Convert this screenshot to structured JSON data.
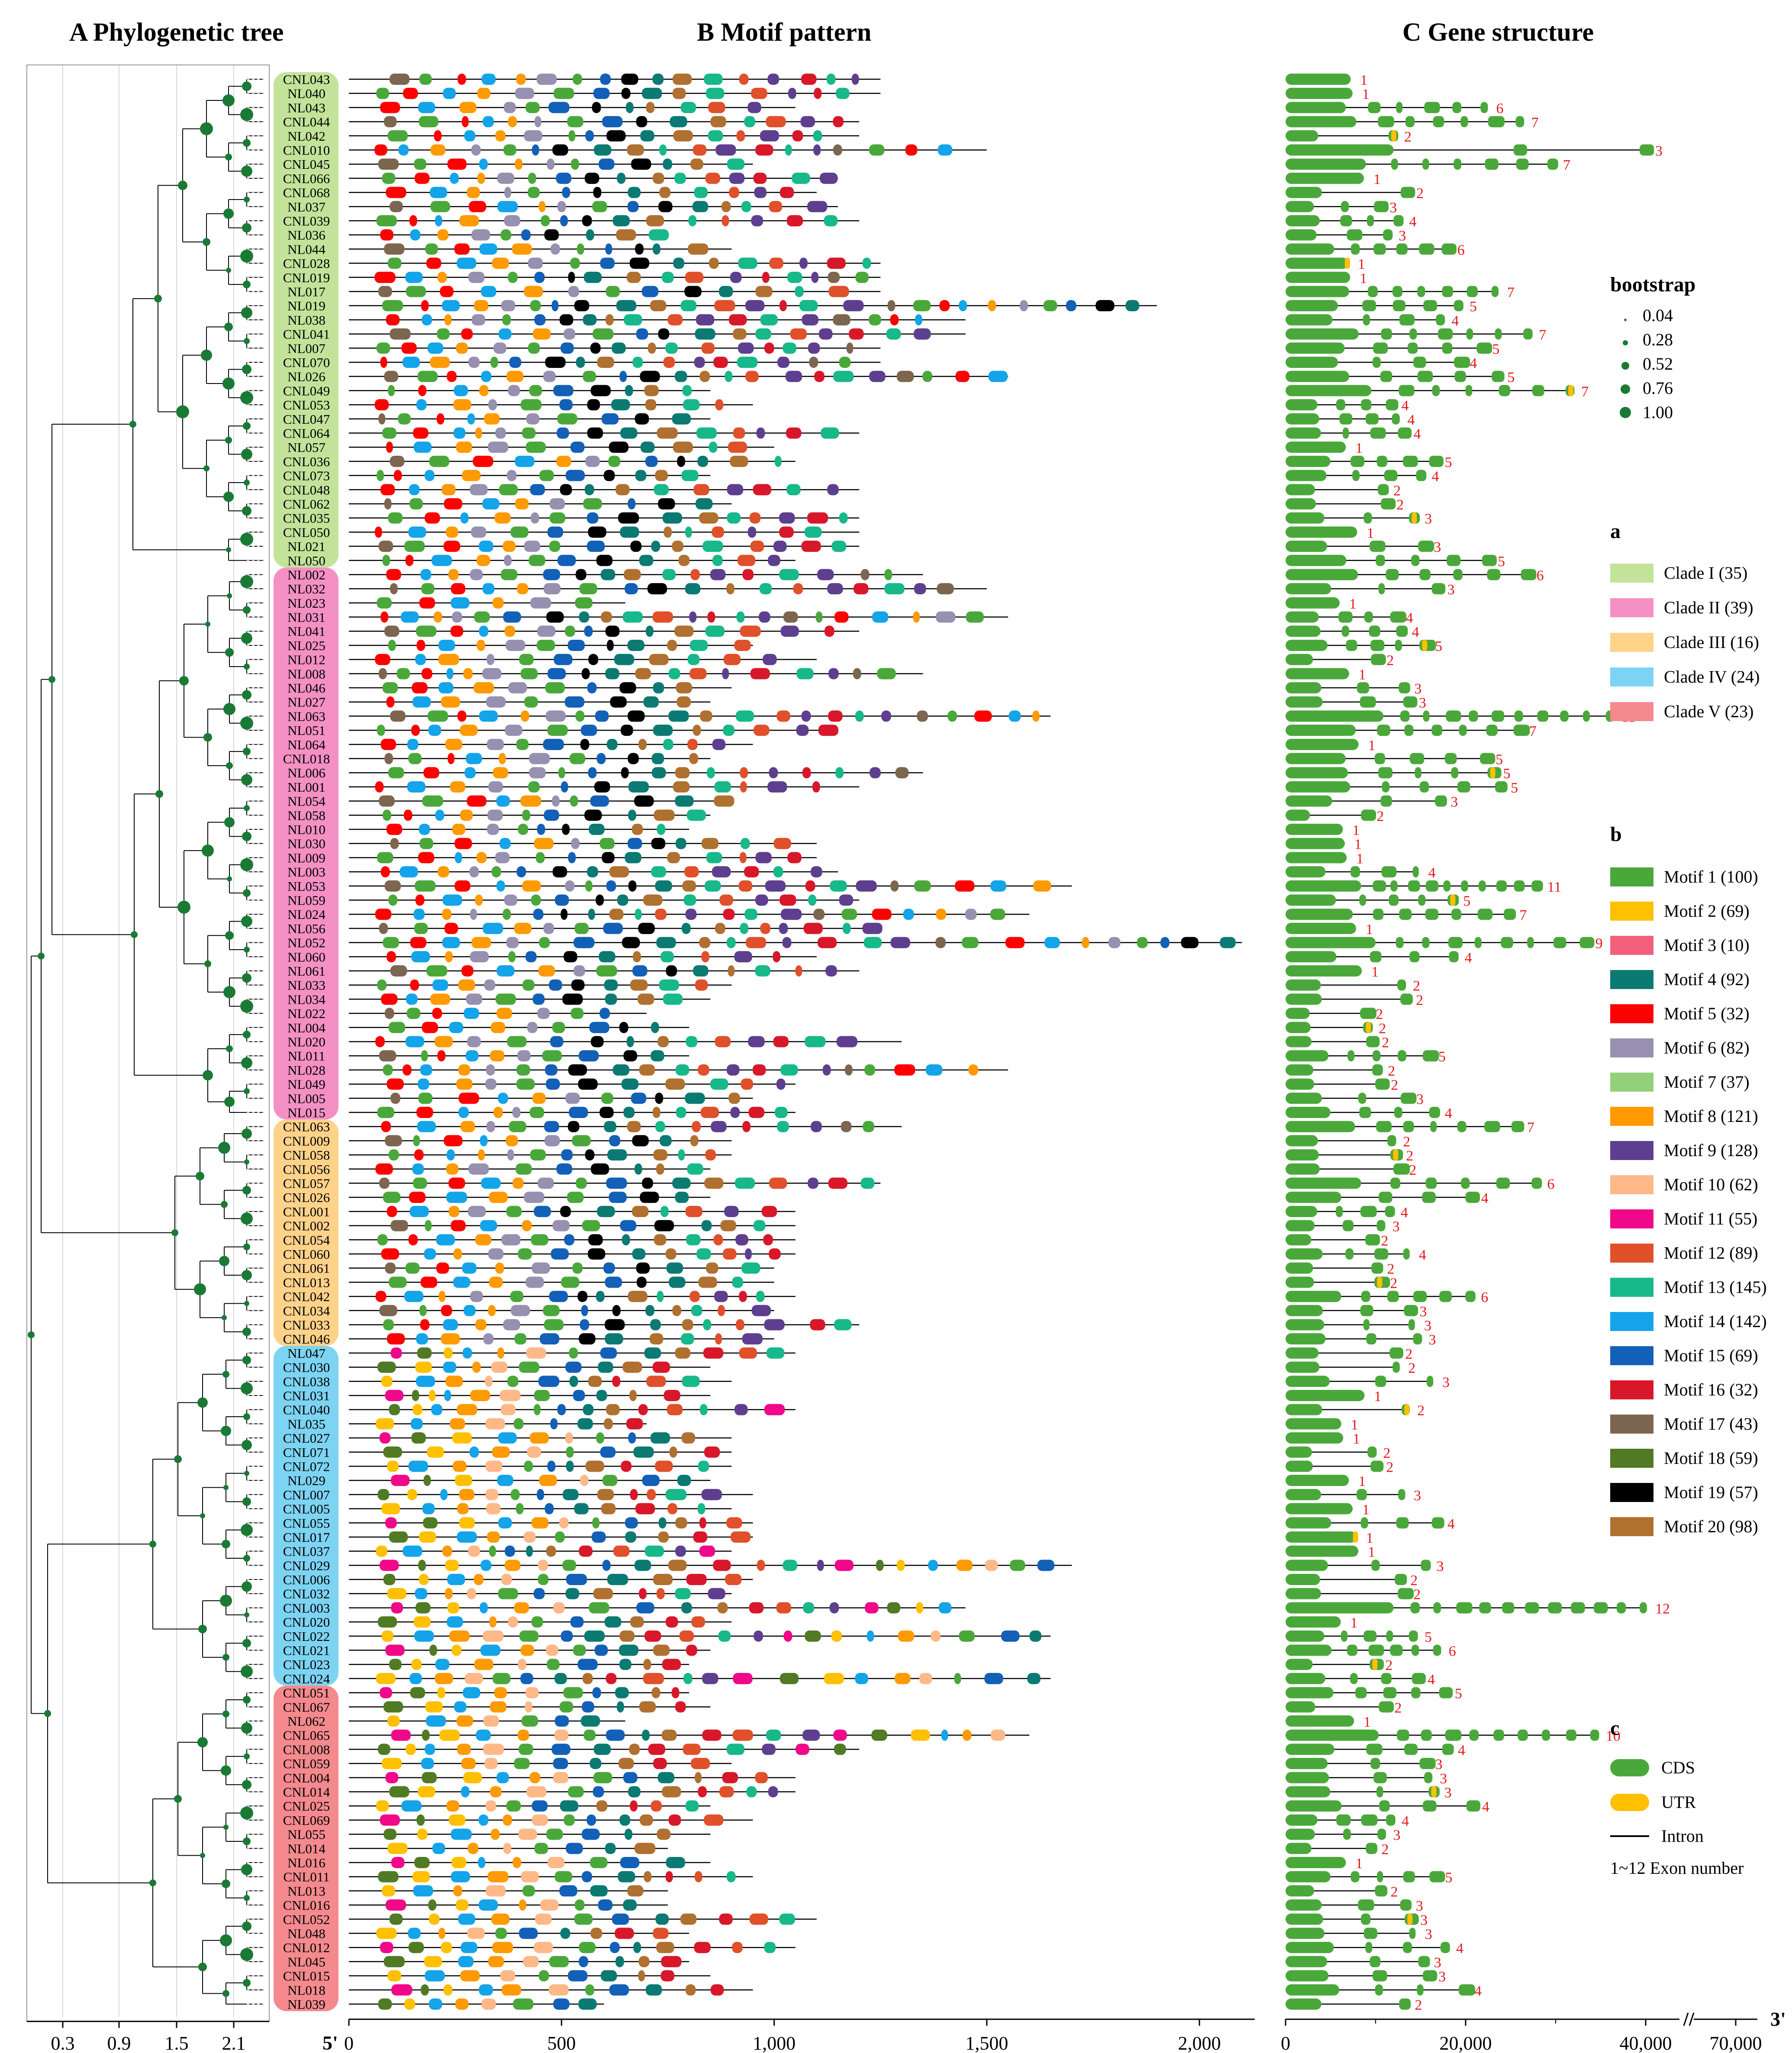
{
  "panels": {
    "a_title": "A  Phylogenetic tree",
    "b_title": "B  Motif pattern",
    "c_title": "C  Gene structure"
  },
  "tree_axis": {
    "ticks": [
      "0.3",
      "0.9",
      "1.5",
      "2.1"
    ]
  },
  "motif_axis": {
    "ticks": [
      "0",
      "500",
      "1,000",
      "1,500",
      "2,000"
    ],
    "start_label": "5'",
    "end_label": "3'"
  },
  "gene_axis": {
    "ticks": [
      "0",
      "20,000",
      "40,000",
      "70,000"
    ]
  },
  "bootstrap_legend": {
    "title": "bootstrap",
    "values": [
      "0.04",
      "0.28",
      "0.52",
      "0.76",
      "1.00"
    ]
  },
  "clade_legend": {
    "title": "a",
    "items": [
      {
        "label": "Clade I (35)",
        "color": "#c3e39a"
      },
      {
        "label": "Clade II (39)",
        "color": "#f490c4"
      },
      {
        "label": "Clade III (16)",
        "color": "#ffd28a"
      },
      {
        "label": "Clade IV (24)",
        "color": "#7dd3f2"
      },
      {
        "label": "Clade V (23)",
        "color": "#f48a8e"
      }
    ]
  },
  "motif_legend": {
    "title": "b",
    "items": [
      {
        "label": "Motif 1 (100)",
        "color": "#4aa83a"
      },
      {
        "label": "Motif 2 (69)",
        "color": "#ffc000"
      },
      {
        "label": "Motif 3 (10)",
        "color": "#f25f7a"
      },
      {
        "label": "Motif 4 (92)",
        "color": "#0b7a73"
      },
      {
        "label": "Motif 5 (32)",
        "color": "#ff0000"
      },
      {
        "label": "Motif 6 (82)",
        "color": "#9890b0"
      },
      {
        "label": "Motif 7 (37)",
        "color": "#93d07a"
      },
      {
        "label": "Motif 8 (121)",
        "color": "#ff9a00"
      },
      {
        "label": "Motif 9 (128)",
        "color": "#5e3f8f"
      },
      {
        "label": "Motif 10 (62)",
        "color": "#ffb888"
      },
      {
        "label": "Motif 11 (55)",
        "color": "#f0078a"
      },
      {
        "label": "Motif 12 (89)",
        "color": "#e0502a"
      },
      {
        "label": "Motif 13 (145)",
        "color": "#17b88a"
      },
      {
        "label": "Motif 14 (142)",
        "color": "#13a4ea"
      },
      {
        "label": "Motif 15 (69)",
        "color": "#1260b8"
      },
      {
        "label": "Motif 16 (32)",
        "color": "#d8182a"
      },
      {
        "label": "Motif 17 (43)",
        "color": "#7d6650"
      },
      {
        "label": "Motif 18 (59)",
        "color": "#507a24"
      },
      {
        "label": "Motif 19 (57)",
        "color": "#000000"
      },
      {
        "label": "Motif 20 (98)",
        "color": "#b07030"
      }
    ]
  },
  "structure_legend": {
    "title": "c",
    "cds": "CDS",
    "utr": "UTR",
    "intron": "Intron",
    "exon": "1~12 Exon number",
    "cds_color": "#4aa83a",
    "utr_color": "#ffc000",
    "exon_color": "#e31a1c"
  },
  "genes": [
    {
      "name": "CNL043",
      "clade": 1,
      "len": 1250,
      "exons": 1
    },
    {
      "name": "NL040",
      "clade": 1,
      "len": 1250,
      "exons": 1
    },
    {
      "name": "NL043",
      "clade": 1,
      "len": 1050,
      "exons": 6
    },
    {
      "name": "CNL044",
      "clade": 1,
      "len": 1200,
      "exons": 7
    },
    {
      "name": "NL042",
      "clade": 1,
      "len": 1200,
      "exons": 2
    },
    {
      "name": "CNL010",
      "clade": 1,
      "len": 1500,
      "exons": 3
    },
    {
      "name": "CNL045",
      "clade": 1,
      "len": 950,
      "exons": 7
    },
    {
      "name": "CNL066",
      "clade": 1,
      "len": 1150,
      "exons": 1
    },
    {
      "name": "CNL068",
      "clade": 1,
      "len": 1100,
      "exons": 2
    },
    {
      "name": "NL037",
      "clade": 1,
      "len": 1150,
      "exons": 3
    },
    {
      "name": "CNL039",
      "clade": 1,
      "len": 1200,
      "exons": 4
    },
    {
      "name": "NL036",
      "clade": 1,
      "len": 750,
      "exons": 3
    },
    {
      "name": "NL044",
      "clade": 1,
      "len": 900,
      "exons": 6
    },
    {
      "name": "CNL028",
      "clade": 1,
      "len": 1250,
      "exons": 1
    },
    {
      "name": "CNL019",
      "clade": 1,
      "len": 1250,
      "exons": 1
    },
    {
      "name": "NL017",
      "clade": 1,
      "len": 1250,
      "exons": 7
    },
    {
      "name": "NL019",
      "clade": 1,
      "len": 1900,
      "exons": 5
    },
    {
      "name": "NL038",
      "clade": 1,
      "len": 1450,
      "exons": 4
    },
    {
      "name": "CNL041",
      "clade": 1,
      "len": 1450,
      "exons": 7
    },
    {
      "name": "NL007",
      "clade": 1,
      "len": 1250,
      "exons": 5
    },
    {
      "name": "CNL070",
      "clade": 1,
      "len": 1250,
      "exons": 4
    },
    {
      "name": "NL026",
      "clade": 1,
      "len": 1550,
      "exons": 5
    },
    {
      "name": "CNL049",
      "clade": 1,
      "len": 850,
      "exons": 7
    },
    {
      "name": "CNL053",
      "clade": 1,
      "len": 950,
      "exons": 4
    },
    {
      "name": "CNL047",
      "clade": 1,
      "len": 850,
      "exons": 4
    },
    {
      "name": "CNL064",
      "clade": 1,
      "len": 1200,
      "exons": 4
    },
    {
      "name": "NL057",
      "clade": 1,
      "len": 1000,
      "exons": 1
    },
    {
      "name": "CNL036",
      "clade": 1,
      "len": 1050,
      "exons": 5
    },
    {
      "name": "CNL073",
      "clade": 1,
      "len": 850,
      "exons": 4
    },
    {
      "name": "CNL048",
      "clade": 1,
      "len": 1200,
      "exons": 2
    },
    {
      "name": "CNL062",
      "clade": 1,
      "len": 900,
      "exons": 2
    },
    {
      "name": "CNL035",
      "clade": 1,
      "len": 1200,
      "exons": 3
    },
    {
      "name": "CNL050",
      "clade": 1,
      "len": 1200,
      "exons": 1
    },
    {
      "name": "NL021",
      "clade": 1,
      "len": 1200,
      "exons": 3
    },
    {
      "name": "NL050",
      "clade": 1,
      "len": 1050,
      "exons": 5
    },
    {
      "name": "NL002",
      "clade": 2,
      "len": 1350,
      "exons": 6
    },
    {
      "name": "NL032",
      "clade": 2,
      "len": 1500,
      "exons": 3
    },
    {
      "name": "NL023",
      "clade": 2,
      "len": 650,
      "exons": 1
    },
    {
      "name": "NL031",
      "clade": 2,
      "len": 1550,
      "exons": 4
    },
    {
      "name": "NL041",
      "clade": 2,
      "len": 1200,
      "exons": 4
    },
    {
      "name": "NL025",
      "clade": 2,
      "len": 950,
      "exons": 5
    },
    {
      "name": "NL012",
      "clade": 2,
      "len": 1100,
      "exons": 2
    },
    {
      "name": "NL008",
      "clade": 2,
      "len": 1350,
      "exons": 1
    },
    {
      "name": "NL046",
      "clade": 2,
      "len": 900,
      "exons": 3
    },
    {
      "name": "NL027",
      "clade": 2,
      "len": 850,
      "exons": 3
    },
    {
      "name": "NL063",
      "clade": 2,
      "len": 1650,
      "exons": 11
    },
    {
      "name": "NL051",
      "clade": 2,
      "len": 1150,
      "exons": 7
    },
    {
      "name": "NL064",
      "clade": 2,
      "len": 950,
      "exons": 1
    },
    {
      "name": "CNL018",
      "clade": 2,
      "len": 850,
      "exons": 5
    },
    {
      "name": "NL006",
      "clade": 2,
      "len": 1350,
      "exons": 5
    },
    {
      "name": "NL001",
      "clade": 2,
      "len": 1200,
      "exons": 5
    },
    {
      "name": "NL054",
      "clade": 2,
      "len": 900,
      "exons": 3
    },
    {
      "name": "NL058",
      "clade": 2,
      "len": 850,
      "exons": 2
    },
    {
      "name": "NL010",
      "clade": 2,
      "len": 800,
      "exons": 1
    },
    {
      "name": "NL030",
      "clade": 2,
      "len": 1100,
      "exons": 1
    },
    {
      "name": "NL009",
      "clade": 2,
      "len": 1100,
      "exons": 1
    },
    {
      "name": "NL003",
      "clade": 2,
      "len": 1150,
      "exons": 4
    },
    {
      "name": "NL053",
      "clade": 2,
      "len": 1700,
      "exons": 11
    },
    {
      "name": "NL059",
      "clade": 2,
      "len": 1200,
      "exons": 5
    },
    {
      "name": "NL024",
      "clade": 2,
      "len": 1600,
      "exons": 7
    },
    {
      "name": "NL056",
      "clade": 2,
      "len": 1250,
      "exons": 1
    },
    {
      "name": "NL052",
      "clade": 2,
      "len": 2100,
      "exons": 9
    },
    {
      "name": "NL060",
      "clade": 2,
      "len": 1100,
      "exons": 4
    },
    {
      "name": "NL061",
      "clade": 2,
      "len": 1200,
      "exons": 1
    },
    {
      "name": "NL033",
      "clade": 2,
      "len": 900,
      "exons": 2
    },
    {
      "name": "NL034",
      "clade": 2,
      "len": 850,
      "exons": 2
    },
    {
      "name": "NL022",
      "clade": 2,
      "len": 700,
      "exons": 2
    },
    {
      "name": "NL004",
      "clade": 2,
      "len": 800,
      "exons": 2
    },
    {
      "name": "NL020",
      "clade": 2,
      "len": 1300,
      "exons": 2
    },
    {
      "name": "NL011",
      "clade": 2,
      "len": 800,
      "exons": 5
    },
    {
      "name": "NL028",
      "clade": 2,
      "len": 1550,
      "exons": 2
    },
    {
      "name": "NL049",
      "clade": 2,
      "len": 1050,
      "exons": 2
    },
    {
      "name": "NL005",
      "clade": 2,
      "len": 950,
      "exons": 3
    },
    {
      "name": "NL015",
      "clade": 2,
      "len": 1050,
      "exons": 4
    },
    {
      "name": "CNL063",
      "clade": 3,
      "len": 1300,
      "exons": 7
    },
    {
      "name": "CNL009",
      "clade": 3,
      "len": 900,
      "exons": 2
    },
    {
      "name": "CNL058",
      "clade": 3,
      "len": 900,
      "exons": 2
    },
    {
      "name": "CNL056",
      "clade": 3,
      "len": 850,
      "exons": 2
    },
    {
      "name": "CNL057",
      "clade": 3,
      "len": 1250,
      "exons": 6
    },
    {
      "name": "CNL026",
      "clade": 3,
      "len": 850,
      "exons": 4
    },
    {
      "name": "CNL001",
      "clade": 3,
      "len": 1050,
      "exons": 4
    },
    {
      "name": "CNL002",
      "clade": 3,
      "len": 1050,
      "exons": 3
    },
    {
      "name": "CNL054",
      "clade": 3,
      "len": 1050,
      "exons": 2
    },
    {
      "name": "CNL060",
      "clade": 3,
      "len": 1050,
      "exons": 4
    },
    {
      "name": "CNL061",
      "clade": 3,
      "len": 1000,
      "exons": 2
    },
    {
      "name": "CNL013",
      "clade": 3,
      "len": 1000,
      "exons": 2
    },
    {
      "name": "CNL042",
      "clade": 3,
      "len": 1050,
      "exons": 6
    },
    {
      "name": "CNL034",
      "clade": 3,
      "len": 1000,
      "exons": 3
    },
    {
      "name": "CNL033",
      "clade": 3,
      "len": 1200,
      "exons": 3
    },
    {
      "name": "CNL046",
      "clade": 3,
      "len": 1000,
      "exons": 3
    },
    {
      "name": "NL047",
      "clade": 4,
      "len": 1050,
      "exons": 2
    },
    {
      "name": "CNL030",
      "clade": 4,
      "len": 850,
      "exons": 2
    },
    {
      "name": "CNL038",
      "clade": 4,
      "len": 900,
      "exons": 3
    },
    {
      "name": "CNL031",
      "clade": 4,
      "len": 850,
      "exons": 1
    },
    {
      "name": "CNL040",
      "clade": 4,
      "len": 1050,
      "exons": 2
    },
    {
      "name": "NL035",
      "clade": 4,
      "len": 700,
      "exons": 1
    },
    {
      "name": "CNL027",
      "clade": 4,
      "len": 900,
      "exons": 1
    },
    {
      "name": "CNL071",
      "clade": 4,
      "len": 900,
      "exons": 2
    },
    {
      "name": "CNL072",
      "clade": 4,
      "len": 900,
      "exons": 2
    },
    {
      "name": "NL029",
      "clade": 4,
      "len": 850,
      "exons": 1
    },
    {
      "name": "CNL007",
      "clade": 4,
      "len": 950,
      "exons": 3
    },
    {
      "name": "CNL005",
      "clade": 4,
      "len": 900,
      "exons": 1
    },
    {
      "name": "CNL055",
      "clade": 4,
      "len": 950,
      "exons": 4
    },
    {
      "name": "CNL017",
      "clade": 4,
      "len": 950,
      "exons": 1
    },
    {
      "name": "CNL037",
      "clade": 4,
      "len": 900,
      "exons": 1
    },
    {
      "name": "CNL029",
      "clade": 4,
      "len": 1700,
      "exons": 3
    },
    {
      "name": "CNL006",
      "clade": 4,
      "len": 950,
      "exons": 2
    },
    {
      "name": "CNL032",
      "clade": 4,
      "len": 900,
      "exons": 2
    },
    {
      "name": "CNL003",
      "clade": 4,
      "len": 1450,
      "exons": 12
    },
    {
      "name": "CNL020",
      "clade": 4,
      "len": 900,
      "exons": 1
    },
    {
      "name": "CNL022",
      "clade": 4,
      "len": 1650,
      "exons": 5
    },
    {
      "name": "CNL021",
      "clade": 4,
      "len": 850,
      "exons": 6
    },
    {
      "name": "CNL023",
      "clade": 4,
      "len": 800,
      "exons": 2
    },
    {
      "name": "CNL024",
      "clade": 4,
      "len": 1650,
      "exons": 4
    },
    {
      "name": "CNL051",
      "clade": 5,
      "len": 800,
      "exons": 5
    },
    {
      "name": "CNL067",
      "clade": 5,
      "len": 850,
      "exons": 2
    },
    {
      "name": "NL062",
      "clade": 5,
      "len": 650,
      "exons": 1
    },
    {
      "name": "CNL065",
      "clade": 5,
      "len": 1600,
      "exons": 10
    },
    {
      "name": "CNL008",
      "clade": 5,
      "len": 1200,
      "exons": 4
    },
    {
      "name": "CNL059",
      "clade": 5,
      "len": 900,
      "exons": 3
    },
    {
      "name": "CNL004",
      "clade": 5,
      "len": 1050,
      "exons": 3
    },
    {
      "name": "CNL014",
      "clade": 5,
      "len": 1050,
      "exons": 3
    },
    {
      "name": "CNL025",
      "clade": 5,
      "len": 850,
      "exons": 4
    },
    {
      "name": "CNL069",
      "clade": 5,
      "len": 950,
      "exons": 4
    },
    {
      "name": "NL055",
      "clade": 5,
      "len": 850,
      "exons": 3
    },
    {
      "name": "NL014",
      "clade": 5,
      "len": 750,
      "exons": 2
    },
    {
      "name": "NL016",
      "clade": 5,
      "len": 850,
      "exons": 1
    },
    {
      "name": "CNL011",
      "clade": 5,
      "len": 950,
      "exons": 5
    },
    {
      "name": "NL013",
      "clade": 5,
      "len": 750,
      "exons": 2
    },
    {
      "name": "CNL016",
      "clade": 5,
      "len": 750,
      "exons": 3
    },
    {
      "name": "CNL052",
      "clade": 5,
      "len": 1100,
      "exons": 3
    },
    {
      "name": "NL048",
      "clade": 5,
      "len": 800,
      "exons": 3
    },
    {
      "name": "CNL012",
      "clade": 5,
      "len": 1050,
      "exons": 4
    },
    {
      "name": "NL045",
      "clade": 5,
      "len": 800,
      "exons": 3
    },
    {
      "name": "CNL015",
      "clade": 5,
      "len": 850,
      "exons": 3
    },
    {
      "name": "NL018",
      "clade": 5,
      "len": 950,
      "exons": 4
    },
    {
      "name": "NL039",
      "clade": 5,
      "len": 600,
      "exons": 2
    }
  ]
}
